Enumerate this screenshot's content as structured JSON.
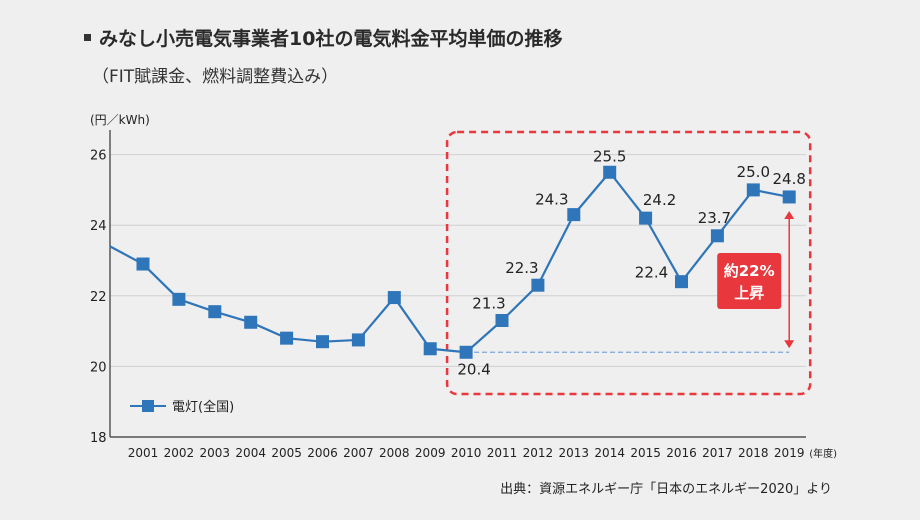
{
  "header": {
    "title": "みなし小売電気事業者10社の電気料金平均単価の推移",
    "subtitle": "（FIT賦課金、燃料調整費込み）"
  },
  "footer": {
    "source": "出典：資源エネルギー庁「日本のエネルギー2020」より"
  },
  "chart_data": {
    "type": "line",
    "title": "みなし小売電気事業者10社の電気料金平均単価の推移",
    "subtitle": "（FIT賦課金、燃料調整費込み）",
    "ylabel": "(円／kWh)",
    "xlabel": "(年度)",
    "ylim": [
      18,
      26.5
    ],
    "yticks": [
      18,
      20,
      22,
      24,
      26
    ],
    "grid": true,
    "legend": {
      "label": "電灯(全国)",
      "placement": "bottom-left"
    },
    "categories": [
      "2001",
      "2002",
      "2003",
      "2004",
      "2005",
      "2006",
      "2007",
      "2008",
      "2009",
      "2010",
      "2011",
      "2012",
      "2013",
      "2014",
      "2015",
      "2016",
      "2017",
      "2018",
      "2019"
    ],
    "series": [
      {
        "name": "電灯(全国)",
        "color": "#2f75b9",
        "start_value_2000": 23.4,
        "values": [
          22.9,
          21.9,
          21.55,
          21.25,
          20.8,
          20.7,
          20.75,
          21.95,
          20.5,
          20.4,
          21.3,
          22.3,
          24.3,
          25.5,
          24.2,
          22.4,
          23.7,
          25.0,
          24.8
        ]
      }
    ],
    "data_labels": [
      {
        "category": "2010",
        "text": "20.4"
      },
      {
        "category": "2011",
        "text": "21.3"
      },
      {
        "category": "2012",
        "text": "22.3"
      },
      {
        "category": "2013",
        "text": "24.3"
      },
      {
        "category": "2014",
        "text": "25.5"
      },
      {
        "category": "2015",
        "text": "24.2"
      },
      {
        "category": "2016",
        "text": "22.4"
      },
      {
        "category": "2017",
        "text": "23.7"
      },
      {
        "category": "2018",
        "text": "25.0"
      },
      {
        "category": "2019",
        "text": "24.8"
      }
    ],
    "highlight": {
      "from": "2010",
      "to": "2019",
      "border_color": "#e8383d",
      "annotation_line1": "約22%",
      "annotation_line2": "上昇",
      "annotation_color": "#e8383d",
      "baseline_value": 20.4,
      "baseline_color": "#7aa6d6"
    }
  }
}
